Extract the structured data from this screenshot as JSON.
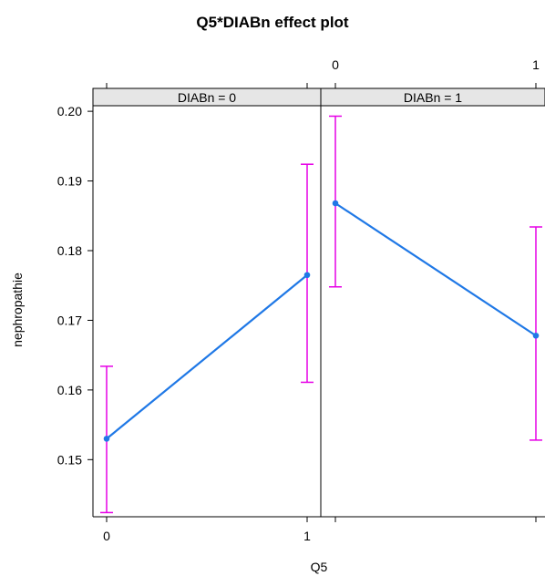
{
  "chart_data": {
    "type": "line",
    "title": "Q5*DIABn effect plot",
    "xlabel": "Q5",
    "ylabel": "nephropathie",
    "x_ticks": [
      "0",
      "1"
    ],
    "y_ticks": [
      "0.15",
      "0.16",
      "0.17",
      "0.18",
      "0.19",
      "0.20"
    ],
    "ylim": [
      0.1418,
      0.2008
    ],
    "grid": false,
    "line_color": "#1f78e6",
    "errorbar_color": "#e600e6",
    "strip_color": "#e6e6e6",
    "panels": [
      {
        "label": "DIABn = 0",
        "x": [
          0,
          1
        ],
        "y": [
          0.153,
          0.1765
        ],
        "lower": [
          0.1424,
          0.1611
        ],
        "upper": [
          0.1634,
          0.1924
        ]
      },
      {
        "label": "DIABn = 1",
        "x": [
          0,
          1
        ],
        "y": [
          0.1868,
          0.1678
        ],
        "lower": [
          0.1748,
          0.1528
        ],
        "upper": [
          0.1993,
          0.1834
        ]
      }
    ]
  }
}
